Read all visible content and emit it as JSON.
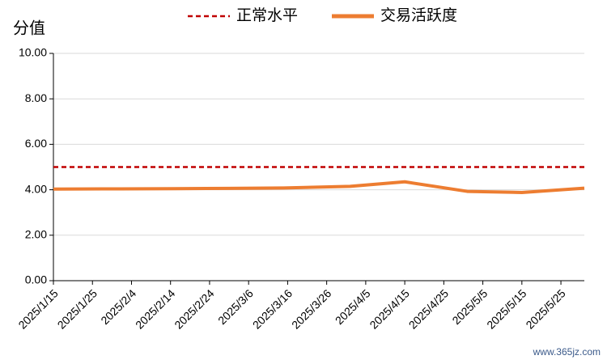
{
  "chart_data": {
    "type": "line",
    "y_label": "分值",
    "x": [
      "2025/1/15",
      "2025/2/1",
      "2025/2/15",
      "2025/3/1",
      "2025/3/15",
      "2025/4/1",
      "2025/4/15",
      "2025/5/1",
      "2025/5/15",
      "2025/5/31"
    ],
    "series": [
      {
        "name": "正常水平",
        "color": "#c00000",
        "dashed": true,
        "values": [
          5,
          5,
          5,
          5,
          5,
          5,
          5,
          5,
          5,
          5
        ]
      },
      {
        "name": "交易活跃度",
        "color": "#ed7d31",
        "dashed": false,
        "values": [
          4.03,
          4.04,
          4.05,
          4.06,
          4.08,
          4.15,
          4.35,
          3.93,
          3.88,
          4.07
        ]
      }
    ],
    "xlim": [
      "2025/1/15",
      "2025/5/31"
    ],
    "xticks": [
      "2025/1/15",
      "2025/1/25",
      "2025/2/4",
      "2025/2/14",
      "2025/2/24",
      "2025/3/6",
      "2025/3/16",
      "2025/3/26",
      "2025/4/5",
      "2025/4/15",
      "2025/4/25",
      "2025/5/5",
      "2025/5/15",
      "2025/5/25"
    ],
    "ylim": [
      0,
      10
    ],
    "yticks": [
      {
        "value": 0,
        "label": "0.00"
      },
      {
        "value": 2,
        "label": "2.00"
      },
      {
        "value": 4,
        "label": "4.00"
      },
      {
        "value": 6,
        "label": "6.00"
      },
      {
        "value": 8,
        "label": "8.00"
      },
      {
        "value": 10,
        "label": "10.00"
      }
    ],
    "grid": true,
    "legend": "top",
    "watermark": "www.365jz.com"
  }
}
